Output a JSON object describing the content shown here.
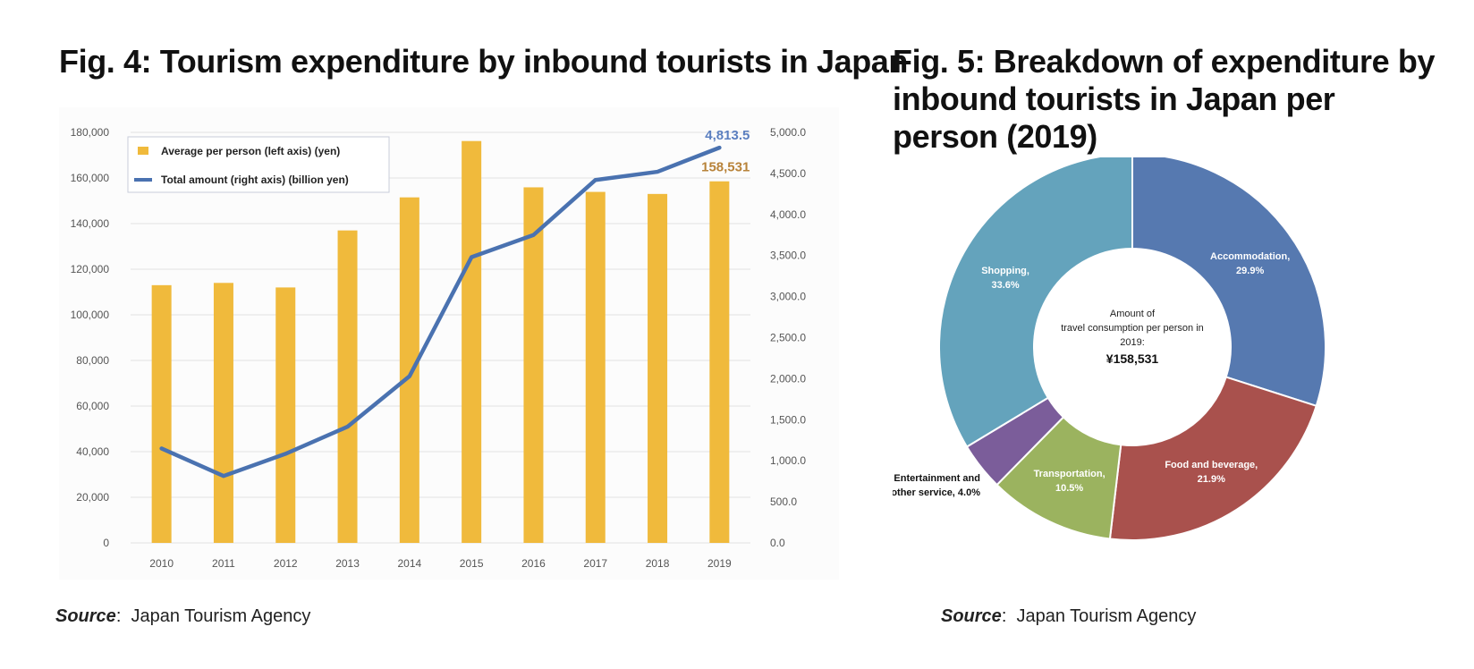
{
  "figures": {
    "fig4": {
      "title": "Fig. 4: Tourism expenditure by inbound tourists in Japan",
      "source_label": "Source",
      "source_text": "Japan Tourism Agency"
    },
    "fig5": {
      "title": "Fig. 5: Breakdown of expenditure by inbound tourists in Japan per person (2019)",
      "source_label": "Source",
      "source_text": "Japan Tourism Agency"
    }
  },
  "colors": {
    "bar": "#F0BA3C",
    "line": "#4A72B0",
    "label_line": "#5B7FC0",
    "label_bar": "#B8833A",
    "grid": "#E2E2E2",
    "axis_text": "#555555"
  },
  "chart_data": [
    {
      "type": "bar",
      "categories": [
        "2010",
        "2011",
        "2012",
        "2013",
        "2014",
        "2015",
        "2016",
        "2017",
        "2018",
        "2019"
      ],
      "series": [
        {
          "name": "Average per person (left axis) (yen)",
          "type": "bar",
          "axis": "left",
          "values": [
            113000,
            114000,
            112000,
            137000,
            151500,
            176200,
            155900,
            153900,
            153000,
            158531
          ]
        },
        {
          "name": "Total amount (right axis) (billion yen)",
          "type": "line",
          "axis": "right",
          "values": [
            1150,
            815,
            1085,
            1415,
            2030,
            3480,
            3750,
            4420,
            4520,
            4813.5
          ]
        }
      ],
      "annotations": [
        {
          "text": "4,813.5",
          "series": 1,
          "index": 9
        },
        {
          "text": "158,531",
          "series": 0,
          "index": 9
        }
      ],
      "ylim": [
        0,
        180000
      ],
      "y2lim": [
        0,
        5000
      ],
      "yticks": [
        "0",
        "20,000",
        "40,000",
        "60,000",
        "80,000",
        "100,000",
        "120,000",
        "140,000",
        "160,000",
        "180,000"
      ],
      "y2ticks": [
        "0.0",
        "500.0",
        "1,000.0",
        "1,500.0",
        "2,000.0",
        "2,500.0",
        "3,000.0",
        "3,500.0",
        "4,000.0",
        "4,500.0",
        "5,000.0"
      ],
      "grid": true,
      "legend_position": "top-left"
    },
    {
      "type": "pie",
      "donut": true,
      "slices": [
        {
          "label": "Accommodation,",
          "pct_label": "29.9%",
          "value": 29.9,
          "color": "#5679B0"
        },
        {
          "label": "Food and beverage,",
          "pct_label": "21.9%",
          "value": 21.9,
          "color": "#A9514D"
        },
        {
          "label": "Transportation,",
          "pct_label": "10.5%",
          "value": 10.5,
          "color": "#9BB35F"
        },
        {
          "label": "Entertainment and other service, 4.0%",
          "pct_label": "",
          "value": 4.0,
          "color": "#7B5D9A"
        },
        {
          "label": "Shopping,",
          "pct_label": "33.6%",
          "value": 33.6,
          "color": "#64A3BC"
        }
      ],
      "center": {
        "line1": "Amount of",
        "line2": "travel consumption per person in",
        "line3": "2019:",
        "value": "¥158,531"
      }
    }
  ]
}
